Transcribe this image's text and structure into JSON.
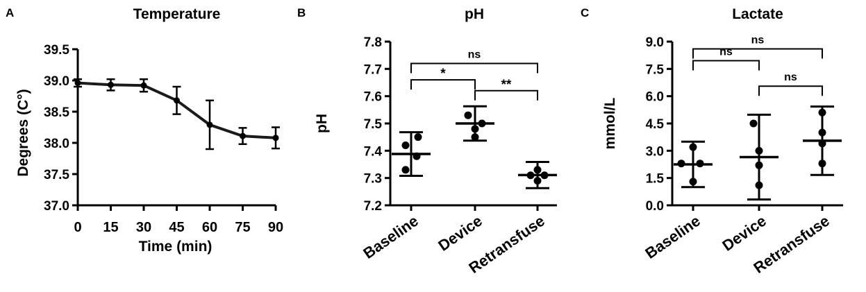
{
  "chart_data": [
    {
      "panel": "A",
      "type": "line",
      "title": "Temperature",
      "xlabel": "Time (min)",
      "ylabel": "Degrees (C°)",
      "xlim": [
        0,
        90
      ],
      "ylim": [
        37.0,
        39.5
      ],
      "xticks": [
        "0",
        "15",
        "30",
        "45",
        "60",
        "75",
        "90"
      ],
      "yticks": [
        "37.0",
        "37.5",
        "38.0",
        "38.5",
        "39.0",
        "39.5"
      ],
      "x": [
        0,
        15,
        30,
        45,
        60,
        75,
        90
      ],
      "series": [
        {
          "values": [
            38.96,
            38.93,
            38.92,
            38.68,
            38.29,
            38.11,
            38.08
          ],
          "error": [
            0.06,
            0.09,
            0.1,
            0.22,
            0.39,
            0.13,
            0.17
          ]
        }
      ],
      "grid": false
    },
    {
      "panel": "B",
      "type": "scatter",
      "title": "pH",
      "xlabel": "",
      "ylabel": "pH",
      "ylim": [
        7.2,
        7.8
      ],
      "yticks": [
        "7.2",
        "7.3",
        "7.4",
        "7.5",
        "7.6",
        "7.7",
        "7.8"
      ],
      "categories": [
        "Baseline",
        "Device",
        "Retransfuse"
      ],
      "points": [
        [
          7.45,
          7.42,
          7.38,
          7.33
        ],
        [
          7.53,
          7.5,
          7.48,
          7.45
        ],
        [
          7.33,
          7.31,
          7.31,
          7.29
        ]
      ],
      "mean": [
        7.388,
        7.5,
        7.311
      ],
      "sd": [
        0.08,
        0.063,
        0.048
      ],
      "significance": [
        {
          "from": "Baseline",
          "to": "Device",
          "label": "*"
        },
        {
          "from": "Device",
          "to": "Retransfuse",
          "label": "**"
        },
        {
          "from": "Baseline",
          "to": "Retransfuse",
          "label": "ns"
        }
      ],
      "grid": false
    },
    {
      "panel": "C",
      "type": "scatter",
      "title": "Lactate",
      "xlabel": "",
      "ylabel": "mmol/L",
      "ylim": [
        0.0,
        9.0
      ],
      "yticks": [
        "0.0",
        "1.5",
        "3.0",
        "4.5",
        "6.0",
        "7.5",
        "9.0"
      ],
      "categories": [
        "Baseline",
        "Device",
        "Retransfuse"
      ],
      "points": [
        [
          3.2,
          2.3,
          2.3,
          1.3
        ],
        [
          4.5,
          3.0,
          2.2,
          1.1
        ],
        [
          5.1,
          4.0,
          3.4,
          2.3
        ]
      ],
      "mean": [
        2.25,
        2.65,
        3.55
      ],
      "sd": [
        1.25,
        2.33,
        1.88
      ],
      "significance": [
        {
          "from": "Baseline",
          "to": "Device",
          "label": "ns"
        },
        {
          "from": "Device",
          "to": "Retransfuse",
          "label": "ns"
        },
        {
          "from": "Baseline",
          "to": "Retransfuse",
          "label": "ns"
        }
      ],
      "grid": false
    }
  ]
}
